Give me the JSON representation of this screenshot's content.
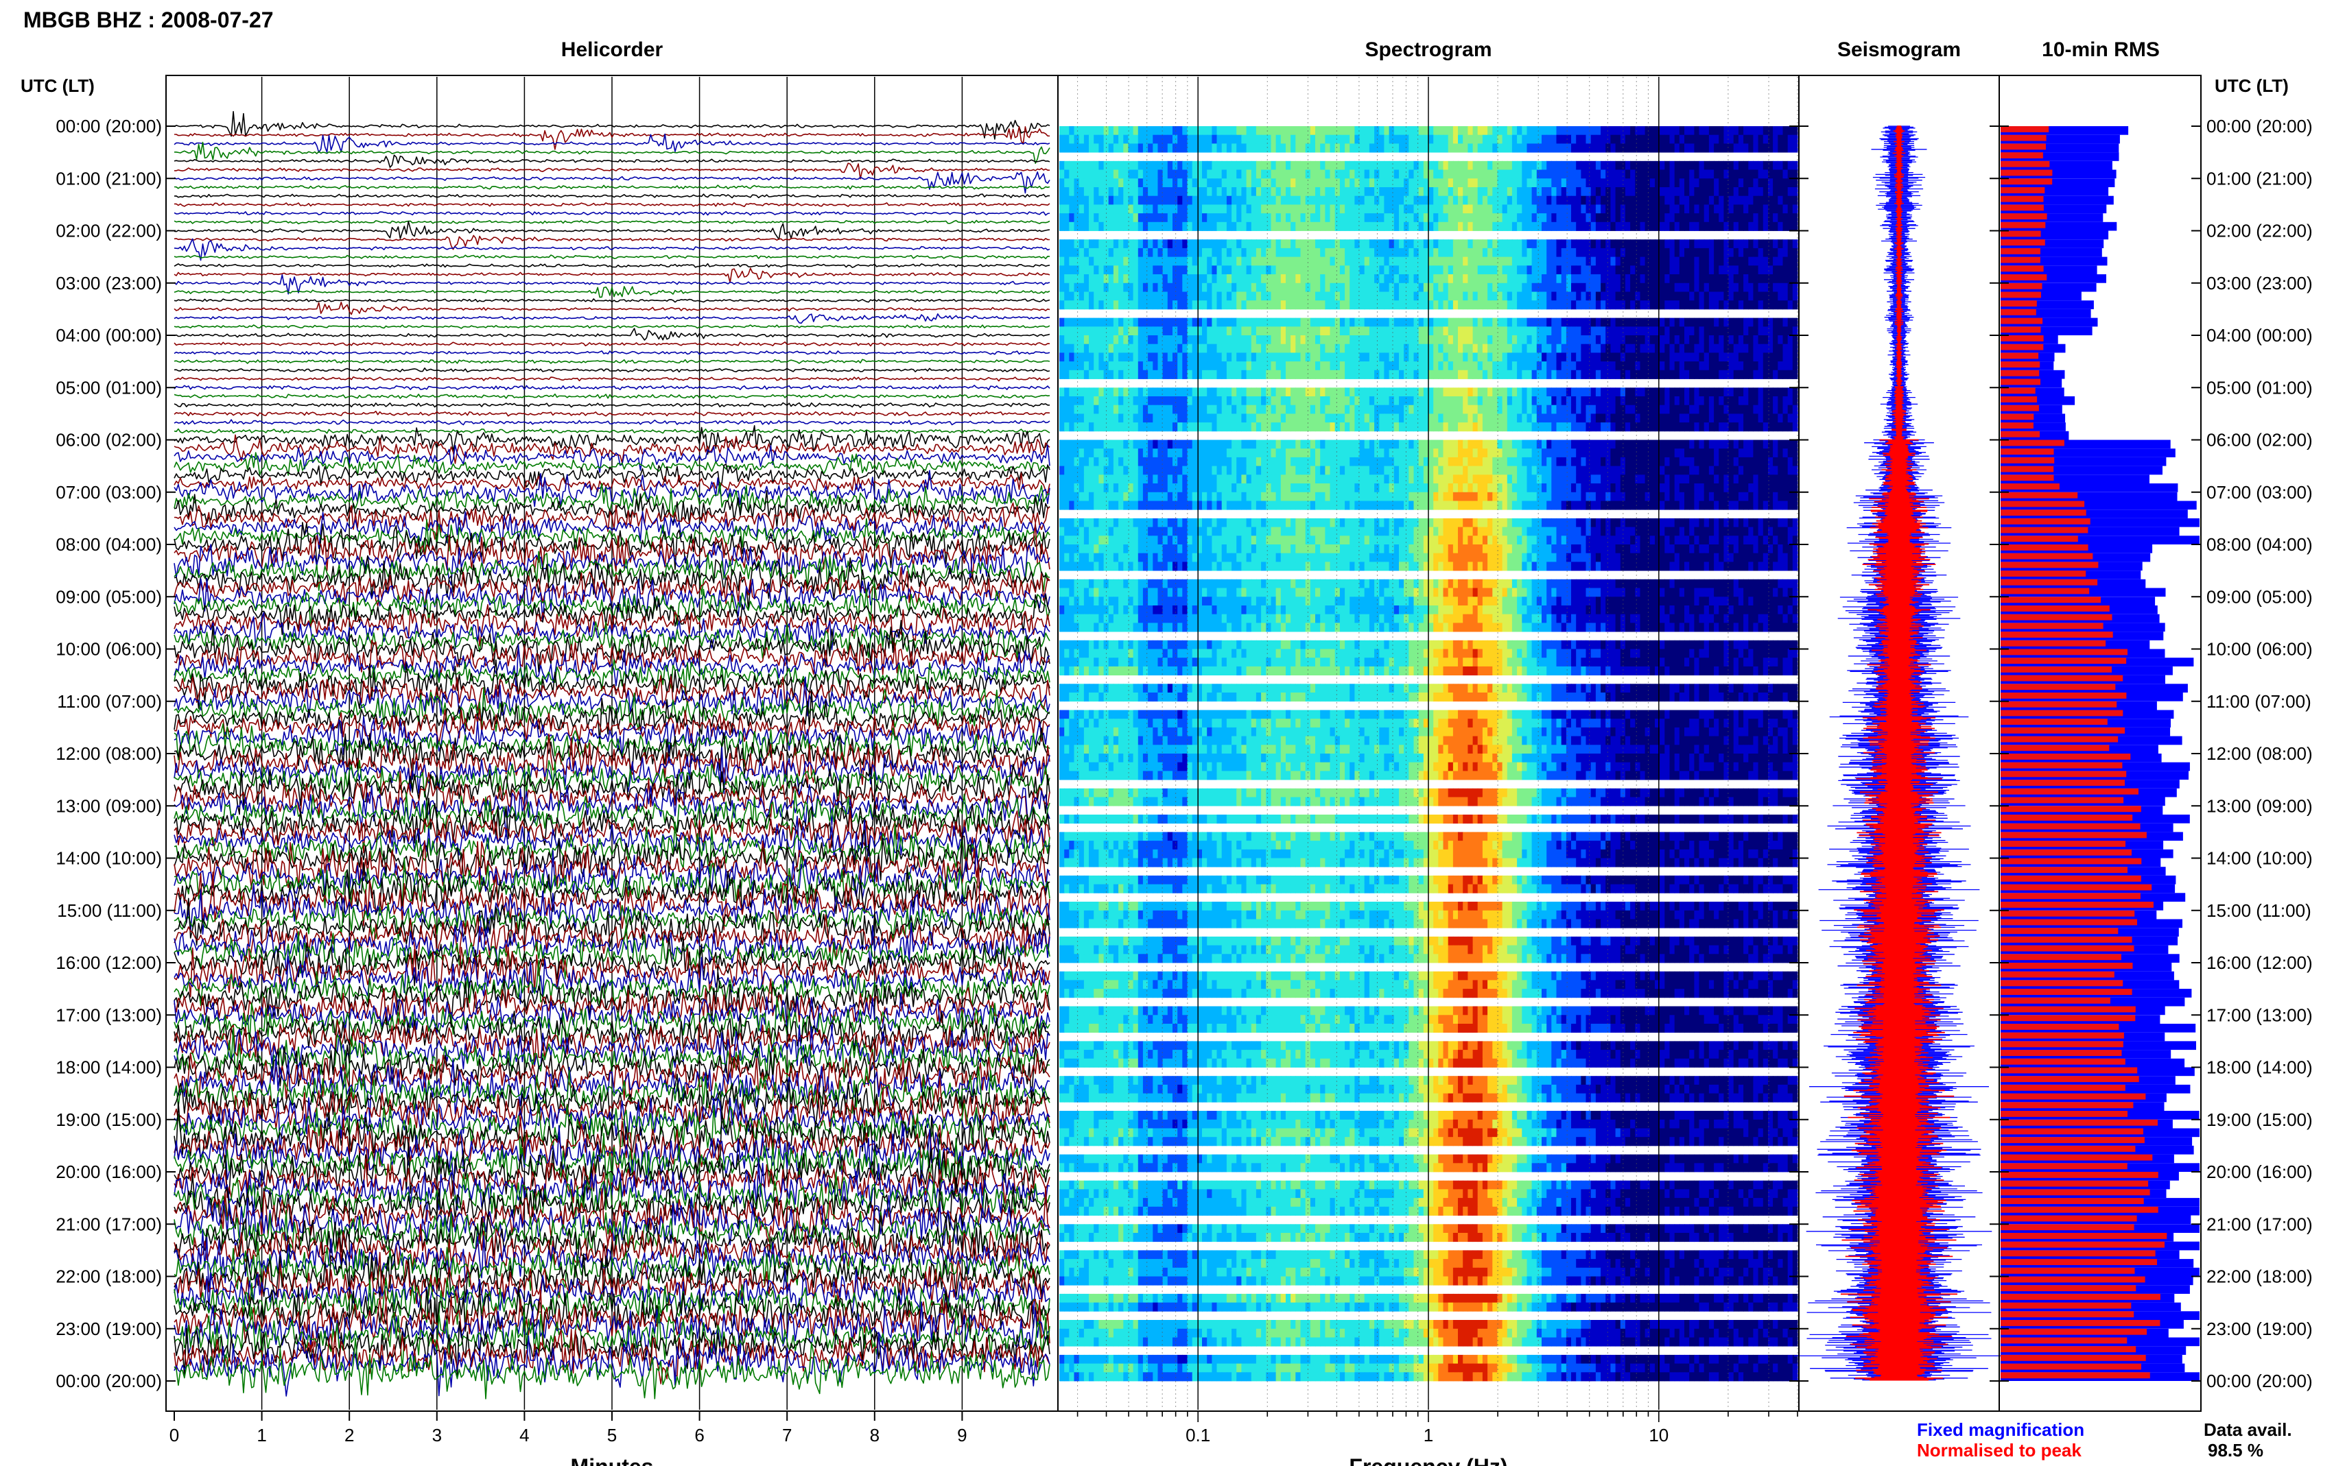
{
  "header": {
    "title": "MBGB BHZ : 2008-07-27",
    "left_axis_label": "UTC (LT)",
    "right_axis_label": "UTC (LT)",
    "panel_titles": [
      "Helicorder",
      "Spectrogram",
      "Seismogram",
      "10-min RMS"
    ]
  },
  "chart_data": [
    {
      "type": "line",
      "panel": "Helicorder",
      "title": "Helicorder",
      "xlabel": "Minutes",
      "xlim": [
        0,
        10
      ],
      "xticks": [
        "0",
        "1",
        "2",
        "3",
        "4",
        "5",
        "6",
        "7",
        "8",
        "9"
      ],
      "y_time_labels": [
        "00:00 (20:00)",
        "01:00 (21:00)",
        "02:00 (22:00)",
        "03:00 (23:00)",
        "04:00 (00:00)",
        "05:00 (01:00)",
        "06:00 (02:00)",
        "07:00 (03:00)",
        "08:00 (04:00)",
        "09:00 (05:00)",
        "10:00 (06:00)",
        "11:00 (07:00)",
        "12:00 (08:00)",
        "13:00 (09:00)",
        "14:00 (10:00)",
        "15:00 (11:00)",
        "16:00 (12:00)",
        "17:00 (13:00)",
        "18:00 (14:00)",
        "19:00 (15:00)",
        "20:00 (16:00)",
        "21:00 (17:00)",
        "22:00 (18:00)",
        "23:00 (19:00)",
        "00:00 (20:00)"
      ],
      "trace_colors": [
        "#000000",
        "#8b0000",
        "#0000aa",
        "#007a00"
      ],
      "rows_per_hour": 6,
      "activity_by_hour": [
        0.12,
        0.14,
        0.13,
        0.12,
        0.15,
        0.22,
        0.55,
        0.7,
        0.85,
        0.8,
        0.82,
        0.85,
        0.9,
        0.92,
        0.95,
        0.9,
        0.92,
        0.95,
        1.0,
        1.0,
        1.0,
        1.0,
        1.0,
        1.0
      ],
      "events": [
        {
          "hour": 0.0,
          "minute": 0.6,
          "amp": 1.8
        },
        {
          "hour": 0.0,
          "minute": 9.2,
          "amp": 2.0
        },
        {
          "hour": 0.17,
          "minute": 4.2,
          "amp": 1.6
        },
        {
          "hour": 0.17,
          "minute": 9.5,
          "amp": 1.8
        },
        {
          "hour": 0.33,
          "minute": 1.6,
          "amp": 1.5
        },
        {
          "hour": 0.33,
          "minute": 5.4,
          "amp": 1.4
        },
        {
          "hour": 0.5,
          "minute": 0.2,
          "amp": 1.6
        },
        {
          "hour": 0.5,
          "minute": 9.8,
          "amp": 1.4
        },
        {
          "hour": 0.67,
          "minute": 2.4,
          "amp": 1.2
        },
        {
          "hour": 0.83,
          "minute": 7.6,
          "amp": 1.7
        },
        {
          "hour": 1.0,
          "minute": 8.6,
          "amp": 1.6
        },
        {
          "hour": 1.0,
          "minute": 9.6,
          "amp": 1.5
        },
        {
          "hour": 2.0,
          "minute": 2.4,
          "amp": 1.7
        },
        {
          "hour": 2.0,
          "minute": 6.8,
          "amp": 1.6
        },
        {
          "hour": 2.17,
          "minute": 3.1,
          "amp": 1.3
        },
        {
          "hour": 2.33,
          "minute": 0.1,
          "amp": 1.4
        },
        {
          "hour": 2.83,
          "minute": 6.3,
          "amp": 1.2
        },
        {
          "hour": 3.0,
          "minute": 1.2,
          "amp": 1.2
        },
        {
          "hour": 3.17,
          "minute": 4.8,
          "amp": 1.2
        },
        {
          "hour": 3.5,
          "minute": 1.6,
          "amp": 1.1
        },
        {
          "hour": 3.67,
          "minute": 7.0,
          "amp": 1.2
        },
        {
          "hour": 3.67,
          "minute": 8.2,
          "amp": 1.1
        },
        {
          "hour": 4.0,
          "minute": 5.2,
          "amp": 1.0
        }
      ]
    },
    {
      "type": "heatmap",
      "panel": "Spectrogram",
      "title": "Spectrogram",
      "xlabel": "Frequency (Hz)",
      "xscale": "log",
      "xlim": [
        0.025,
        40
      ],
      "xticks": [
        0.1,
        1,
        10
      ],
      "xtick_labels": [
        "0.1",
        "1",
        "10"
      ],
      "colormap": [
        "#00007a",
        "#0000c8",
        "#0050ff",
        "#00b4ff",
        "#22e6e6",
        "#7ef08c",
        "#dcf050",
        "#ffd21e",
        "#ff7814",
        "#dc1e00"
      ],
      "dominant_frequency_hz": 1.5,
      "rows": 144,
      "gap_rows": [
        3,
        12,
        21,
        29,
        35,
        44,
        51,
        58,
        63,
        66,
        75,
        78,
        80,
        85,
        88,
        92,
        96,
        100,
        104,
        108,
        112,
        117,
        120,
        125,
        128,
        133,
        136,
        140
      ]
    },
    {
      "type": "area",
      "panel": "Seismogram",
      "title": "Seismogram",
      "series": [
        {
          "name": "Fixed magnification",
          "color": "#0000ff",
          "envelope_by_hour": [
            0.25,
            0.22,
            0.15,
            0.14,
            0.12,
            0.18,
            0.33,
            0.47,
            0.48,
            0.58,
            0.53,
            0.6,
            0.61,
            0.63,
            0.7,
            0.69,
            0.67,
            0.75,
            0.77,
            0.79,
            0.8,
            0.8,
            0.81,
            0.82
          ]
        },
        {
          "name": "Normalised to peak",
          "color": "#ff0000",
          "envelope_by_hour": [
            0.05,
            0.04,
            0.04,
            0.04,
            0.04,
            0.07,
            0.18,
            0.29,
            0.35,
            0.28,
            0.28,
            0.33,
            0.33,
            0.35,
            0.38,
            0.4,
            0.41,
            0.44,
            0.46,
            0.47,
            0.5,
            0.5,
            0.52,
            0.53
          ]
        }
      ]
    },
    {
      "type": "bar",
      "panel": "10-min RMS",
      "title": "10-min RMS",
      "orientation": "horizontal",
      "series": [
        {
          "name": "Fixed magnification",
          "color": "#0000ff",
          "values_by_hour": [
            0.62,
            0.55,
            0.5,
            0.45,
            0.3,
            0.35,
            0.85,
            1.0,
            0.8,
            0.83,
            0.93,
            0.86,
            0.88,
            0.9,
            0.88,
            0.89,
            0.9,
            0.91,
            0.92,
            0.93,
            0.93,
            0.94,
            0.94,
            0.95
          ]
        },
        {
          "name": "Normalised to peak",
          "color": "#ee1111",
          "values_by_hour": [
            0.24,
            0.24,
            0.22,
            0.2,
            0.2,
            0.18,
            0.3,
            0.43,
            0.48,
            0.56,
            0.58,
            0.6,
            0.64,
            0.68,
            0.7,
            0.66,
            0.62,
            0.64,
            0.68,
            0.72,
            0.74,
            0.76,
            0.74,
            0.72
          ]
        }
      ]
    }
  ],
  "legend": {
    "fixed_label": "Fixed magnification",
    "normalised_label": "Normalised to peak"
  },
  "footer": {
    "data_avail_label": "Data avail.",
    "data_avail_value": "98.5 %"
  },
  "colors": {
    "fixed": "#0000ff",
    "normalised": "#ff0000"
  }
}
